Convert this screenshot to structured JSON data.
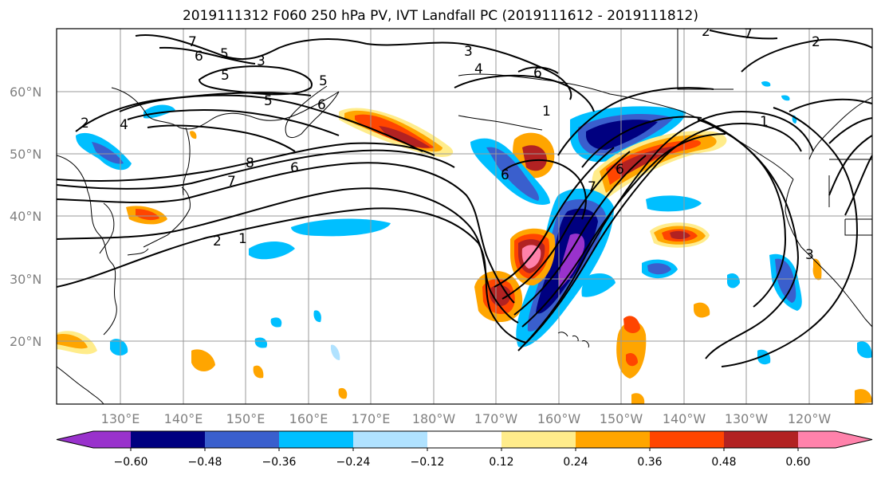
{
  "title": "2019111312 F060 250 hPa PV, IVT Landfall PC (2019111612 - 2019111812)",
  "map": {
    "lat_labels": [
      "60°N",
      "50°N",
      "40°N",
      "30°N",
      "20°N"
    ],
    "lon_labels": [
      "130°E",
      "140°E",
      "150°E",
      "160°E",
      "170°E",
      "180°W",
      "170°W",
      "160°W",
      "150°W",
      "140°W",
      "130°W",
      "120°W"
    ],
    "lat_range": [
      10,
      70
    ],
    "lon_range_east": [
      121,
      251
    ],
    "gridlines": true,
    "coastline_color": "#000000"
  },
  "colorbar": {
    "ticks": [
      "−0.60",
      "−0.48",
      "−0.36",
      "−0.24",
      "−0.12",
      "0.12",
      "0.24",
      "0.36",
      "0.48",
      "0.60"
    ],
    "bins": [
      {
        "color": "#9932cc"
      },
      {
        "color": "#000080"
      },
      {
        "color": "#3a5fcd"
      },
      {
        "color": "#00bfff"
      },
      {
        "color": "#b0e2ff"
      },
      {
        "color": "#ffffff"
      },
      {
        "color": "#ffec8b"
      },
      {
        "color": "#ffa500"
      },
      {
        "color": "#ff4500"
      },
      {
        "color": "#b22222"
      },
      {
        "color": "#ff82ab"
      }
    ],
    "extend": "both"
  },
  "contour_labels": [
    "7",
    "6",
    "5",
    "3",
    "2",
    "4",
    "5",
    "6",
    "7",
    "8",
    "6",
    "2",
    "1",
    "7",
    "6",
    "5",
    "4",
    "3",
    "2",
    "1",
    "6",
    "1",
    "7",
    "6",
    "5",
    "3",
    "2"
  ]
}
